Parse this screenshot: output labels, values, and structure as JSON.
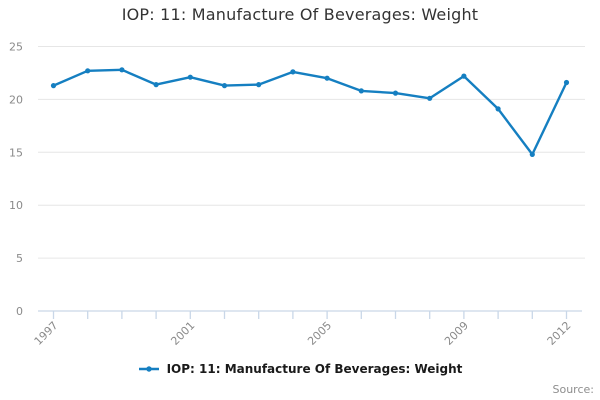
{
  "title": "IOP: 11: Manufacture Of Beverages: Weight",
  "legend": {
    "label": "IOP: 11: Manufacture Of Beverages: Weight"
  },
  "source_label": "Source:",
  "colors": {
    "line": "#157fc1",
    "marker": "#157fc1",
    "grid": "#e6e6e6",
    "axis": "#c9d7e8",
    "axis_label": "#8a8a8a",
    "title_text": "#333333",
    "legend_text": "#1a1a1a",
    "source_text": "#8e8e8e",
    "background": "#ffffff"
  },
  "chart_data": {
    "type": "line",
    "title": "IOP: 11: Manufacture Of Beverages: Weight",
    "x": [
      1997,
      1998,
      1999,
      2000,
      2001,
      2002,
      2003,
      2004,
      2005,
      2006,
      2007,
      2008,
      2009,
      2010,
      2011,
      2012
    ],
    "series": [
      {
        "name": "IOP: 11: Manufacture Of Beverages: Weight",
        "values": [
          21.3,
          22.7,
          22.8,
          21.4,
          22.1,
          21.3,
          21.4,
          22.6,
          22.0,
          20.8,
          20.6,
          20.1,
          22.2,
          19.1,
          14.8,
          21.6
        ]
      }
    ],
    "xlabel": "",
    "ylabel": "",
    "ylim": [
      0,
      25
    ],
    "yticks": [
      0,
      5,
      10,
      15,
      20,
      25
    ],
    "xtick_labels": [
      "1997",
      "2001",
      "2005",
      "2009",
      "2012"
    ],
    "grid": "horizontal",
    "legend_position": "bottom"
  }
}
